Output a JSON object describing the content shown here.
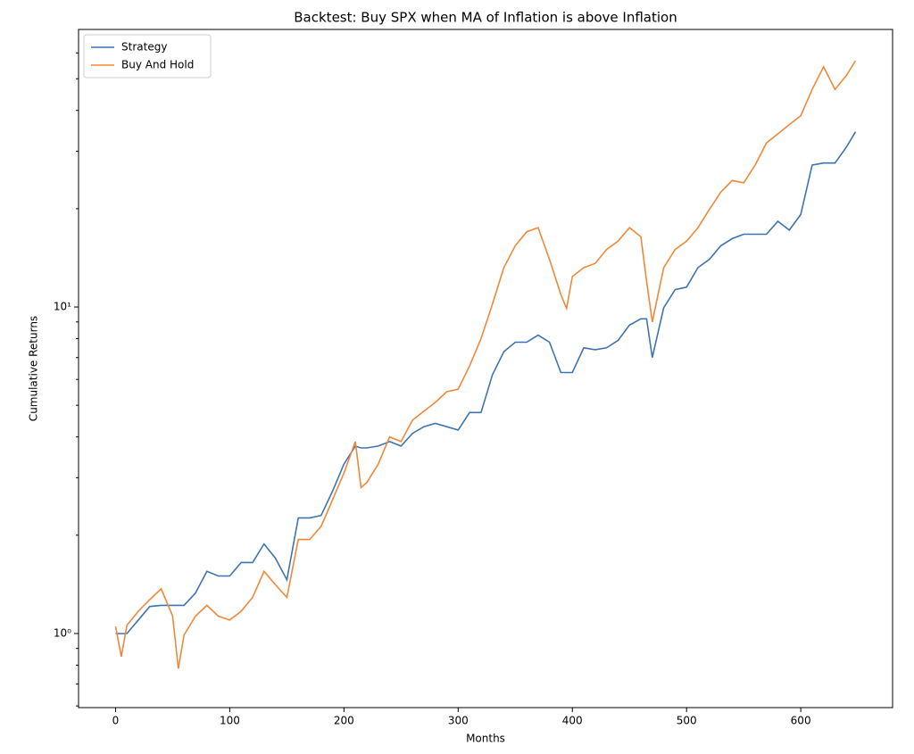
{
  "chart_data": {
    "type": "line",
    "title": "Backtest: Buy SPX when MA of Inflation is above Inflation",
    "xlabel": "Months",
    "ylabel": "Cumulative Returns",
    "x": [
      0,
      5,
      10,
      20,
      30,
      40,
      50,
      55,
      60,
      70,
      80,
      90,
      100,
      110,
      120,
      130,
      140,
      150,
      160,
      170,
      180,
      190,
      200,
      210,
      215,
      220,
      230,
      240,
      250,
      260,
      270,
      280,
      290,
      300,
      310,
      320,
      330,
      340,
      350,
      360,
      370,
      380,
      390,
      395,
      400,
      410,
      420,
      430,
      440,
      450,
      460,
      465,
      470,
      480,
      490,
      500,
      510,
      520,
      530,
      540,
      550,
      560,
      570,
      580,
      590,
      600,
      610,
      620,
      630,
      640,
      648
    ],
    "series": [
      {
        "name": "Strategy",
        "color": "#3d74b0",
        "values": [
          1.0,
          1.0,
          1.0,
          1.1,
          1.21,
          1.22,
          1.22,
          1.22,
          1.22,
          1.33,
          1.55,
          1.5,
          1.5,
          1.65,
          1.65,
          1.88,
          1.7,
          1.46,
          2.26,
          2.26,
          2.3,
          2.73,
          3.3,
          3.75,
          3.7,
          3.7,
          3.75,
          3.87,
          3.75,
          4.1,
          4.3,
          4.4,
          4.3,
          4.2,
          4.75,
          4.75,
          6.2,
          7.3,
          7.8,
          7.8,
          8.2,
          7.8,
          6.3,
          6.3,
          6.3,
          7.5,
          7.4,
          7.5,
          7.9,
          8.8,
          9.2,
          9.2,
          7.0,
          9.95,
          11.3,
          11.5,
          13.2,
          14.0,
          15.4,
          16.2,
          16.7,
          16.7,
          16.7,
          18.3,
          17.2,
          19.2,
          27.2,
          27.6,
          27.6,
          30.9,
          34.4
        ]
      },
      {
        "name": "Buy And Hold",
        "color": "#f0883a",
        "values": [
          1.05,
          0.85,
          1.06,
          1.17,
          1.27,
          1.37,
          1.13,
          0.78,
          0.99,
          1.13,
          1.22,
          1.13,
          1.1,
          1.17,
          1.29,
          1.55,
          1.41,
          1.29,
          1.94,
          1.94,
          2.13,
          2.57,
          3.1,
          3.87,
          2.8,
          2.9,
          3.3,
          4.0,
          3.87,
          4.5,
          4.8,
          5.1,
          5.5,
          5.6,
          6.6,
          8.0,
          10.2,
          13.2,
          15.4,
          17.0,
          17.5,
          14.0,
          10.9,
          9.9,
          12.4,
          13.2,
          13.6,
          15.0,
          15.9,
          17.5,
          16.4,
          12.0,
          9.0,
          13.2,
          15.0,
          15.9,
          17.5,
          19.9,
          22.5,
          24.4,
          24.0,
          27.2,
          31.8,
          33.9,
          36.2,
          38.5,
          46.4,
          54.4,
          46.4,
          51.2,
          56.8
        ]
      }
    ],
    "xlim": [
      -32.4,
      680.4
    ],
    "xticks": [
      0,
      100,
      200,
      300,
      400,
      500,
      600
    ],
    "ylim": [
      0.593,
      70.8
    ],
    "ylog": true,
    "yticks": [
      {
        "value": 1,
        "label": "10⁰"
      },
      {
        "value": 10,
        "label": "10¹"
      }
    ],
    "yminorticks": [
      0.6,
      0.7,
      0.8,
      0.9,
      2,
      3,
      4,
      5,
      6,
      7,
      8,
      9,
      20,
      30,
      40,
      50,
      60
    ],
    "legend": "upper left"
  }
}
